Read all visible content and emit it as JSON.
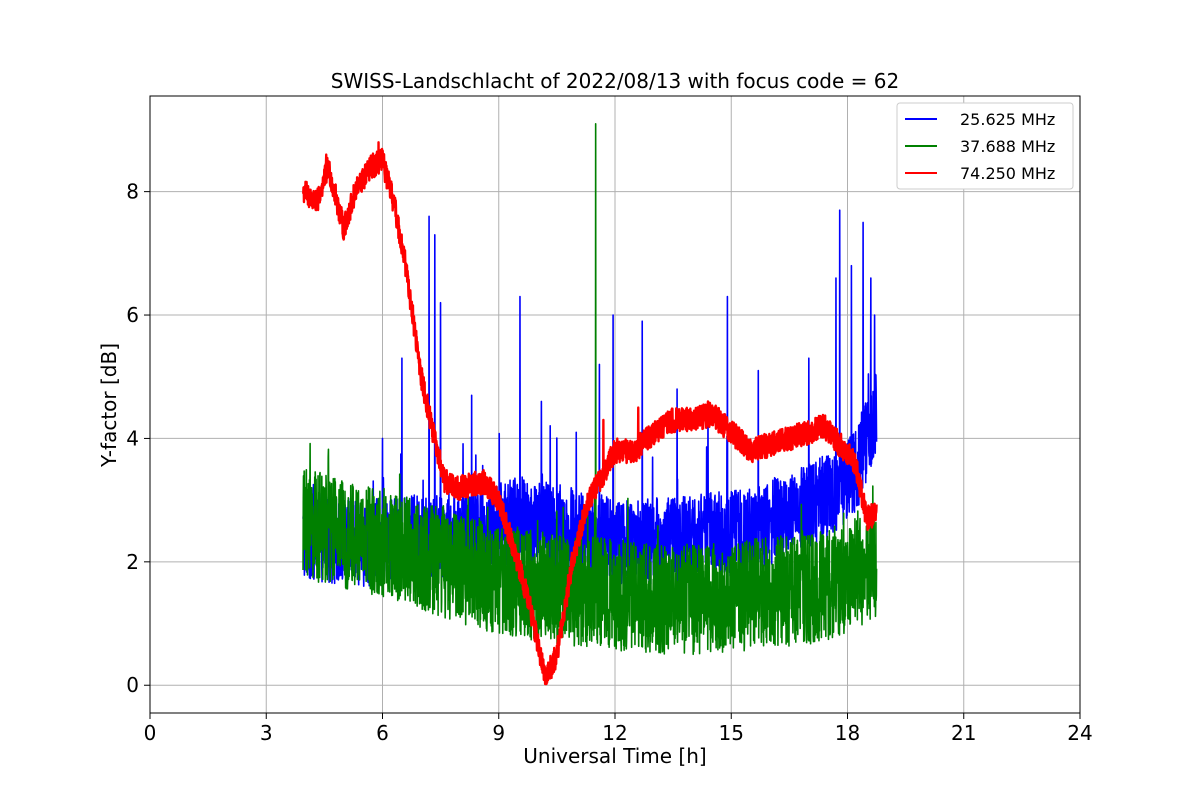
{
  "chart_data": {
    "type": "line",
    "title": "SWISS-Landschlacht of 2022/08/13 with focus code = 62",
    "xlabel": "Universal Time [h]",
    "ylabel": "Y-factor [dB]",
    "xlim": [
      0,
      24
    ],
    "ylim": [
      -0.45,
      9.55
    ],
    "xticks": [
      0,
      3,
      6,
      9,
      12,
      15,
      18,
      21,
      24
    ],
    "yticks": [
      0,
      2,
      4,
      6,
      8
    ],
    "grid": true,
    "legend_position": "top-right",
    "series": [
      {
        "name": "25.625 MHz",
        "color": "#0000ff",
        "baseline": [
          [
            4.0,
            2.4
          ],
          [
            5.5,
            2.3
          ],
          [
            7.0,
            2.4
          ],
          [
            8.5,
            2.5
          ],
          [
            9.5,
            2.7
          ],
          [
            10.5,
            2.6
          ],
          [
            11.5,
            2.4
          ],
          [
            12.5,
            2.3
          ],
          [
            14.0,
            2.4
          ],
          [
            15.5,
            2.5
          ],
          [
            17.0,
            2.9
          ],
          [
            17.8,
            3.2
          ],
          [
            18.3,
            3.6
          ],
          [
            18.75,
            4.5
          ]
        ],
        "spread": 0.7,
        "spikes": [
          [
            4.8,
            2.9
          ],
          [
            6.0,
            4.0
          ],
          [
            6.5,
            5.3
          ],
          [
            7.2,
            7.6
          ],
          [
            7.35,
            7.3
          ],
          [
            7.5,
            6.2
          ],
          [
            8.3,
            4.7
          ],
          [
            9.55,
            6.3
          ],
          [
            10.1,
            4.6
          ],
          [
            11.0,
            4.1
          ],
          [
            11.6,
            5.2
          ],
          [
            11.95,
            6.0
          ],
          [
            12.7,
            5.9
          ],
          [
            13.6,
            4.8
          ],
          [
            14.4,
            4.6
          ],
          [
            14.9,
            6.3
          ],
          [
            15.7,
            5.1
          ],
          [
            17.0,
            5.3
          ],
          [
            17.7,
            6.6
          ],
          [
            17.8,
            7.7
          ],
          [
            18.1,
            6.8
          ],
          [
            18.4,
            7.5
          ],
          [
            18.6,
            6.6
          ],
          [
            18.7,
            6.0
          ]
        ],
        "x_range": [
          3.95,
          18.75
        ]
      },
      {
        "name": "37.688 MHz",
        "color": "#008000",
        "baseline": [
          [
            4.0,
            2.6
          ],
          [
            5.5,
            2.4
          ],
          [
            7.0,
            2.1
          ],
          [
            8.5,
            1.8
          ],
          [
            10.0,
            1.6
          ],
          [
            11.5,
            1.5
          ],
          [
            13.0,
            1.4
          ],
          [
            14.5,
            1.4
          ],
          [
            16.0,
            1.5
          ],
          [
            17.5,
            1.6
          ],
          [
            18.75,
            2.0
          ]
        ],
        "spread": 0.9,
        "spikes": [
          [
            11.5,
            9.1
          ],
          [
            4.6,
            3.7
          ]
        ],
        "x_range": [
          3.95,
          18.75
        ]
      },
      {
        "name": "74.250 MHz",
        "color": "#ff0000",
        "baseline": [
          [
            4.0,
            8.0
          ],
          [
            4.3,
            7.8
          ],
          [
            4.6,
            8.4
          ],
          [
            5.0,
            7.4
          ],
          [
            5.3,
            8.0
          ],
          [
            5.7,
            8.4
          ],
          [
            6.0,
            8.5
          ],
          [
            6.3,
            7.8
          ],
          [
            6.6,
            6.8
          ],
          [
            7.0,
            5.0
          ],
          [
            7.3,
            4.1
          ],
          [
            7.6,
            3.3
          ],
          [
            8.0,
            3.2
          ],
          [
            8.6,
            3.3
          ],
          [
            9.0,
            3.0
          ],
          [
            9.4,
            2.2
          ],
          [
            9.8,
            1.3
          ],
          [
            10.2,
            0.1
          ],
          [
            10.5,
            0.5
          ],
          [
            10.9,
            2.0
          ],
          [
            11.3,
            3.0
          ],
          [
            11.6,
            3.3
          ],
          [
            12.0,
            3.8
          ],
          [
            12.5,
            3.8
          ],
          [
            13.0,
            4.1
          ],
          [
            13.5,
            4.3
          ],
          [
            14.0,
            4.3
          ],
          [
            14.5,
            4.4
          ],
          [
            15.0,
            4.1
          ],
          [
            15.5,
            3.8
          ],
          [
            16.0,
            3.9
          ],
          [
            16.5,
            4.0
          ],
          [
            17.0,
            4.1
          ],
          [
            17.4,
            4.2
          ],
          [
            17.8,
            3.9
          ],
          [
            18.2,
            3.6
          ],
          [
            18.5,
            2.7
          ],
          [
            18.75,
            2.8
          ]
        ],
        "spread": 0.2,
        "spikes": [
          [
            5.9,
            8.8
          ],
          [
            4.55,
            8.6
          ],
          [
            11.7,
            4.3
          ],
          [
            14.4,
            4.6
          ],
          [
            12.6,
            4.5
          ]
        ],
        "x_range": [
          3.95,
          18.75
        ]
      }
    ]
  }
}
